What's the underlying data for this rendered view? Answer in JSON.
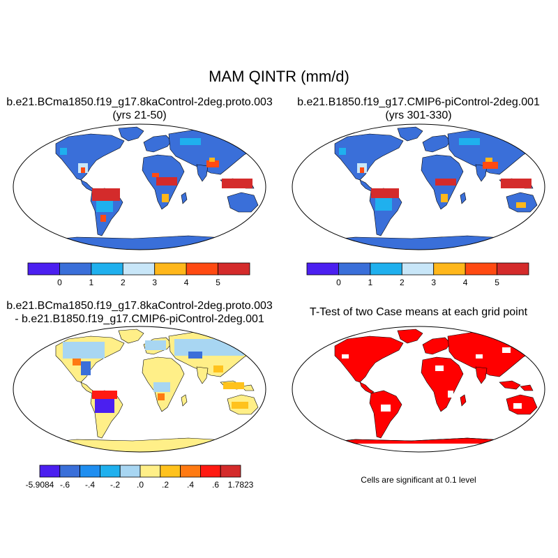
{
  "figure_title": "MAM QINTR (mm/d)",
  "colors": {
    "land": "#3a6fd9",
    "ocean": "#ffffff",
    "outline": "#000000",
    "significant": "#ff0000",
    "abs_palette": [
      "#4b1ff0",
      "#3a6fd9",
      "#1fb0ee",
      "#c8e6f8",
      "#ffb71b",
      "#ff4a12",
      "#d42b2b"
    ],
    "diff_palette": [
      "#4b1ff0",
      "#3a6fd9",
      "#1f8ef0",
      "#1fb0ee",
      "#a8d6f2",
      "#ffef88",
      "#ffc21d",
      "#ff7a12",
      "#ff1a12",
      "#d42b2b"
    ]
  },
  "panels": {
    "case1": {
      "title_line1": "b.e21.BCma1850.f19_g17.8kaControl-2deg.proto.003",
      "title_line2": "(yrs 21-50)"
    },
    "case2": {
      "title_line1": "b.e21.B1850.f19_g17.CMIP6-piControl-2deg.001",
      "title_line2": "(yrs 301-330)"
    },
    "difference": {
      "title_line1": "b.e21.BCma1850.f19_g17.8kaControl-2deg.proto.003",
      "title_line2": "- b.e21.B1850.f19_g17.CMIP6-piControl-2deg.001"
    },
    "ttest": {
      "title_line1": "T-Test of two Case means at each grid point",
      "note": "Cells are significant at 0.1 level"
    }
  },
  "colorbars": {
    "abs_labels": [
      "0",
      "1",
      "2",
      "3",
      "4",
      "5"
    ],
    "diff_labels": [
      "-5.9084",
      "-.6",
      "-.4",
      "-.2",
      ".0",
      ".2",
      ".4",
      ".6",
      "1.7823"
    ]
  }
}
